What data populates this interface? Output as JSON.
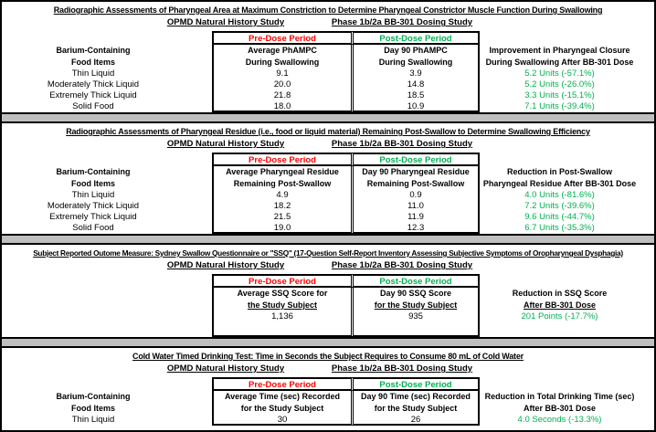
{
  "colors": {
    "pre_dose_red": "#FF0000",
    "post_dose_green": "#00B050",
    "improvement_green": "#00B050",
    "divider_gray": "#BFBFBF"
  },
  "shared": {
    "study_column_left": "OPMD Natural History Study",
    "study_column_right": "Phase 1b/2a BB-301 Dosing Study",
    "pre_dose_label": "Pre-Dose Period",
    "post_dose_label": "Post-Dose Period",
    "food_header_line1": "Barium-Containing",
    "food_header_line2": "Food Items"
  },
  "sections": [
    {
      "title": "Radiographic Assessments of Pharyngeal Area at Maximum Constriction to Determine Pharyngeal Constrictor Muscle Function During Swallowing",
      "pre_header": [
        "Average PhAMPC",
        "During Swallowing"
      ],
      "post_header": [
        "Day 90 PhAMPC",
        "During Swallowing"
      ],
      "result_header": [
        "Improvement in Pharyngeal Closure",
        "During Swallowing After BB-301 Dose"
      ],
      "rows": [
        {
          "food": "Thin Liquid",
          "pre": "9.1",
          "post": "3.9",
          "result": "5.2 Units (-57.1%)"
        },
        {
          "food": "Moderately Thick Liquid",
          "pre": "20.0",
          "post": "14.8",
          "result": "5.2 Units (-26.0%)"
        },
        {
          "food": "Extremely Thick Liquid",
          "pre": "21.8",
          "post": "18.5",
          "result": "3.3 Units (-15.1%)"
        },
        {
          "food": "Solid Food",
          "pre": "18.0",
          "post": "10.9",
          "result": "7.1 Units (-39.4%)"
        }
      ]
    },
    {
      "title": "Radiographic Assessments of Pharyngeal Residue (i.e., food or liquid material) Remaining Post-Swallow to Determine Swallowing Efficiency",
      "pre_header": [
        "Average Pharyngeal Residue",
        "Remaining Post-Swallow"
      ],
      "post_header": [
        "Day 90 Pharyngeal Residue",
        "Remaining Post-Swallow"
      ],
      "result_header": [
        "Reduction in Post-Swallow",
        "Pharyngeal Residue After BB-301 Dose"
      ],
      "rows": [
        {
          "food": "Thin Liquid",
          "pre": "4.9",
          "post": "0.9",
          "result": "4.0 Units (-81.6%)"
        },
        {
          "food": "Moderately Thick Liquid",
          "pre": "18.2",
          "post": "11.0",
          "result": "7.2 Units (-39.6%)"
        },
        {
          "food": "Extremely Thick Liquid",
          "pre": "21.5",
          "post": "11.9",
          "result": "9.6 Units (-44.7%)"
        },
        {
          "food": "Solid Food",
          "pre": "19.0",
          "post": "12.3",
          "result": "6.7 Units (-35.3%)"
        }
      ]
    },
    {
      "title": "Subject Reported Outome Measure: Sydney Swallow Questionnaire or \"SSQ\" (17-Question Self-Report Inventory Assessing Subjective Symptoms of Oropharyngeal Dysphagia)",
      "pre_header": [
        "Average SSQ Score for",
        "the Study Subject"
      ],
      "post_header": [
        "Day 90 SSQ Score",
        "for the Study Subject"
      ],
      "result_header": [
        "Reduction in SSQ Score",
        "After BB-301 Dose"
      ],
      "rows": [
        {
          "food": "",
          "pre": "1,136",
          "post": "935",
          "result": "201 Points (-17.7%)"
        }
      ]
    },
    {
      "title": "Cold Water Timed Drinking Test: Time in Seconds the Subject Requires to Consume 80 mL of Cold Water",
      "pre_header": [
        "Average Time (sec) Recorded",
        "for the Study Subject"
      ],
      "post_header": [
        "Day 90 Time (sec) Recorded",
        "for the Study Subject"
      ],
      "result_header": [
        "Reduction in Total Drinking Time (sec)",
        "After BB-301 Dose"
      ],
      "rows": [
        {
          "food": "Thin Liquid",
          "pre": "30",
          "post": "26",
          "result": "4.0 Seconds (-13.3%)"
        }
      ]
    }
  ]
}
